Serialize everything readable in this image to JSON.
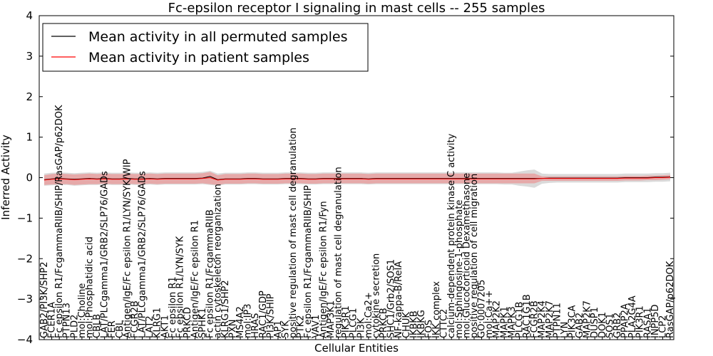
{
  "chart_data": {
    "type": "line",
    "title": "Fc-epsilon receptor I signaling in mast cells -- 255 samples",
    "xlabel": "Cellular Entities",
    "ylabel": "Inferred Activity",
    "ylim": [
      -4,
      4
    ],
    "yticks": [
      "4",
      "3",
      "2",
      "1",
      "0",
      "−1",
      "−2",
      "−3",
      "−4"
    ],
    "grid": false,
    "legend_position": "top-left",
    "categories": [
      "GAB2/PI3K/SHP2",
      "FCER1A",
      "Fc epsilon R1/FcgammaRIIB/SHIP/RasGAP/p62DOK",
      "PTPN13",
      "PLD2",
      "mol:Choline",
      "mol:Phosphatidic acid",
      "CBLB",
      "LAT/PLCgamma1/GRB2/SLP76/GADs",
      "FER",
      "CBL",
      "Antigen/IgE/Fc epsilon R1/LYN/SYK/WIP",
      "FCGR2B",
      "LAT/PLCgamma1/GRB2/SLP76/GADs",
      "LAT2",
      "KLRG1",
      "AKT1",
      "Fc epsilon R1",
      "Fc epsilon R1/LYN/SYK",
      "PRKCD",
      "Antigen/IgE/Fc epsilon R1",
      "SPHK1",
      "Fc epsilon R1/FcgammaRIIB",
      "actin cytoskeleton reorganization",
      "KLRG1/SHP2",
      "PXN",
      "MS4A2",
      "mol:IP3",
      "HRAS",
      "RAC1/GDP",
      "PI3K/SHIP",
      "AP1",
      "SYK",
      "positive regulation of mast cell degranulation",
      "PTK2",
      "Fc epsilon R1/FcgammaRIIB/SHIP",
      "VAV1",
      "Antigen/IgE/Fc epsilon R1/Fyn",
      "MAP3K1",
      "regulation of mast cell degranulation",
      "PIK3R1",
      "PLCG1",
      "PI3K",
      "mol:Ca2+",
      "cytokine secretion",
      "PRKCB",
      "SHC1/Grb2/SOS1",
      "NF-kappa-B/RelA",
      "CHUK",
      "IKBKB",
      "IKBKG",
      "FOS",
      "IKK complex",
      "CTTC2",
      "calcium-dependent protein kinase C activity",
      "mol:Sphingosine-1-phosphate",
      "mol:Glucocorticoid Dexamethasone",
      "positive regulation of cell migration",
      "GO:0007205",
      "mol:Ca++",
      "MAP2K2",
      "MAPK1",
      "MAPK3",
      "PLCG1B",
      "RAC1G1B",
      "FCGR2B",
      "MAP2K4",
      "MAP2K7",
      "PTPN11",
      "LYN",
      "PIK3CA",
      "GAB2",
      "MAP2K7",
      "DUSP1",
      "DOK1",
      "SOS1",
      "GRB2",
      "PPAP2A",
      "PLA2G4A",
      "PIK3R1",
      "RASA1",
      "INPP5D",
      "LCP2",
      "RasGAP/p62DOK"
    ],
    "series": [
      {
        "name": "Mean activity in all permuted samples",
        "color": "#000000",
        "values": [
          -0.05,
          -0.03,
          -0.02,
          -0.03,
          -0.04,
          -0.03,
          -0.02,
          -0.03,
          -0.02,
          -0.03,
          -0.03,
          -0.02,
          -0.03,
          -0.03,
          -0.02,
          -0.03,
          -0.02,
          -0.02,
          -0.02,
          -0.02,
          -0.02,
          -0.01,
          0.03,
          -0.05,
          -0.03,
          -0.03,
          -0.03,
          -0.02,
          -0.02,
          -0.03,
          -0.03,
          -0.03,
          -0.02,
          -0.02,
          -0.02,
          -0.03,
          -0.03,
          -0.02,
          -0.02,
          -0.02,
          -0.02,
          -0.02,
          -0.02,
          -0.03,
          -0.02,
          -0.02,
          -0.02,
          -0.02,
          -0.02,
          -0.02,
          -0.02,
          -0.02,
          -0.02,
          -0.02,
          -0.02,
          -0.02,
          -0.02,
          -0.02,
          -0.02,
          -0.02,
          -0.02,
          -0.02,
          -0.02,
          -0.02,
          -0.02,
          -0.02,
          -0.02,
          -0.01,
          -0.01,
          -0.01,
          -0.01,
          -0.01,
          -0.01,
          -0.01,
          -0.01,
          -0.01,
          -0.01,
          0.0,
          0.0,
          0.0,
          0.0,
          0.01,
          0.01,
          0.02
        ],
        "band": {
          "color": "#bbbbbb",
          "lower": [
            -0.2,
            -0.19,
            -0.18,
            -0.18,
            -0.2,
            -0.19,
            -0.18,
            -0.18,
            -0.17,
            -0.18,
            -0.18,
            -0.17,
            -0.18,
            -0.18,
            -0.17,
            -0.18,
            -0.17,
            -0.17,
            -0.17,
            -0.17,
            -0.17,
            -0.16,
            -0.18,
            -0.2,
            -0.17,
            -0.17,
            -0.17,
            -0.16,
            -0.16,
            -0.17,
            -0.17,
            -0.17,
            -0.16,
            -0.16,
            -0.16,
            -0.17,
            -0.17,
            -0.16,
            -0.16,
            -0.16,
            -0.16,
            -0.16,
            -0.16,
            -0.17,
            -0.16,
            -0.16,
            -0.16,
            -0.16,
            -0.16,
            -0.16,
            -0.16,
            -0.16,
            -0.16,
            -0.16,
            -0.16,
            -0.16,
            -0.16,
            -0.16,
            -0.16,
            -0.16,
            -0.16,
            -0.17,
            -0.17,
            -0.2,
            -0.22,
            -0.25,
            -0.15,
            -0.13,
            -0.12,
            -0.12,
            -0.12,
            -0.12,
            -0.12,
            -0.12,
            -0.12,
            -0.12,
            -0.12,
            -0.11,
            -0.11,
            -0.11,
            -0.11,
            -0.1,
            -0.1,
            -0.09
          ],
          "upper": [
            0.1,
            0.12,
            0.13,
            0.12,
            0.11,
            0.12,
            0.13,
            0.12,
            0.13,
            0.12,
            0.12,
            0.13,
            0.12,
            0.12,
            0.13,
            0.12,
            0.13,
            0.13,
            0.13,
            0.13,
            0.13,
            0.14,
            0.17,
            0.1,
            0.12,
            0.12,
            0.12,
            0.13,
            0.13,
            0.12,
            0.12,
            0.12,
            0.13,
            0.13,
            0.13,
            0.12,
            0.12,
            0.13,
            0.13,
            0.13,
            0.13,
            0.13,
            0.13,
            0.12,
            0.13,
            0.13,
            0.13,
            0.13,
            0.13,
            0.13,
            0.13,
            0.13,
            0.13,
            0.13,
            0.13,
            0.13,
            0.13,
            0.13,
            0.13,
            0.13,
            0.13,
            0.12,
            0.12,
            0.15,
            0.18,
            0.2,
            0.1,
            0.09,
            0.09,
            0.09,
            0.09,
            0.09,
            0.09,
            0.09,
            0.09,
            0.09,
            0.09,
            0.1,
            0.1,
            0.1,
            0.1,
            0.11,
            0.11,
            0.12
          ]
        }
      },
      {
        "name": "Mean activity in patient samples",
        "color": "#ff0000",
        "values": [
          -0.06,
          -0.04,
          -0.03,
          -0.04,
          -0.05,
          -0.04,
          -0.03,
          -0.04,
          -0.03,
          -0.04,
          -0.04,
          -0.03,
          -0.04,
          -0.04,
          -0.03,
          -0.04,
          -0.03,
          -0.03,
          -0.03,
          -0.03,
          -0.03,
          -0.02,
          0.0,
          -0.06,
          -0.04,
          -0.04,
          -0.04,
          -0.03,
          -0.03,
          -0.04,
          -0.04,
          -0.04,
          -0.03,
          -0.03,
          -0.03,
          -0.04,
          -0.04,
          -0.03,
          -0.03,
          -0.03,
          -0.03,
          -0.03,
          -0.03,
          -0.04,
          -0.03,
          -0.03,
          -0.03,
          -0.03,
          -0.03,
          -0.03,
          -0.03,
          -0.03,
          -0.03,
          -0.03,
          -0.03,
          -0.03,
          -0.03,
          -0.03,
          -0.03,
          -0.03,
          -0.03,
          -0.03,
          -0.03,
          -0.03,
          -0.03,
          -0.03,
          -0.02,
          -0.02,
          -0.02,
          -0.02,
          -0.02,
          -0.02,
          -0.02,
          -0.02,
          -0.02,
          -0.02,
          -0.02,
          -0.01,
          -0.01,
          -0.01,
          -0.01,
          0.0,
          0.0,
          0.01
        ],
        "band": {
          "color": "#ee8888",
          "lower": [
            -0.18,
            -0.17,
            -0.16,
            -0.16,
            -0.18,
            -0.17,
            -0.16,
            -0.16,
            -0.15,
            -0.16,
            -0.16,
            -0.15,
            -0.16,
            -0.16,
            -0.15,
            -0.16,
            -0.15,
            -0.15,
            -0.15,
            -0.15,
            -0.15,
            -0.14,
            -0.16,
            -0.18,
            -0.15,
            -0.15,
            -0.15,
            -0.14,
            -0.14,
            -0.15,
            -0.15,
            -0.15,
            -0.14,
            -0.14,
            -0.14,
            -0.15,
            -0.15,
            -0.14,
            -0.14,
            -0.14,
            -0.14,
            -0.14,
            -0.14,
            -0.15,
            -0.14,
            -0.14,
            -0.14,
            -0.14,
            -0.14,
            -0.14,
            -0.14,
            -0.14,
            -0.14,
            -0.14,
            -0.14,
            -0.14,
            -0.14,
            -0.14,
            -0.14,
            -0.14,
            -0.14,
            -0.14,
            -0.14,
            -0.14,
            -0.14,
            -0.14,
            -0.08,
            -0.08,
            -0.08,
            -0.08,
            -0.08,
            -0.08,
            -0.08,
            -0.08,
            -0.08,
            -0.08,
            -0.08,
            -0.07,
            -0.07,
            -0.07,
            -0.06,
            -0.06,
            -0.05,
            -0.04
          ],
          "upper": [
            0.06,
            0.09,
            0.1,
            0.09,
            0.08,
            0.09,
            0.1,
            0.09,
            0.1,
            0.09,
            0.09,
            0.1,
            0.09,
            0.09,
            0.1,
            0.09,
            0.1,
            0.1,
            0.1,
            0.1,
            0.1,
            0.11,
            0.14,
            0.06,
            0.09,
            0.09,
            0.09,
            0.1,
            0.1,
            0.09,
            0.09,
            0.09,
            0.1,
            0.1,
            0.1,
            0.09,
            0.09,
            0.1,
            0.1,
            0.1,
            0.1,
            0.1,
            0.1,
            0.09,
            0.1,
            0.1,
            0.1,
            0.1,
            0.1,
            0.1,
            0.1,
            0.1,
            0.1,
            0.1,
            0.1,
            0.1,
            0.1,
            0.1,
            0.1,
            0.1,
            0.1,
            0.1,
            0.1,
            0.1,
            0.1,
            0.1,
            0.03,
            0.03,
            0.03,
            0.03,
            0.03,
            0.03,
            0.03,
            0.03,
            0.03,
            0.03,
            0.03,
            0.04,
            0.04,
            0.04,
            0.05,
            0.05,
            0.06,
            0.07
          ]
        }
      }
    ]
  }
}
